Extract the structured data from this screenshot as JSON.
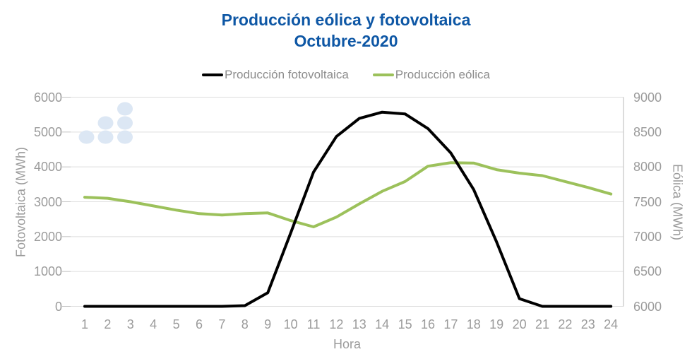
{
  "title": {
    "line1": "Producción eólica y fotovoltaica",
    "line2": "Octubre-2020"
  },
  "legend": {
    "items": [
      {
        "id": "fotovoltaica",
        "label": "Producción fotovoltaica",
        "color": "#000000"
      },
      {
        "id": "eolica",
        "label": "Producción eólica",
        "color": "#9cc15b"
      }
    ]
  },
  "axes": {
    "left_title": "Fotovoltaica (MWh)",
    "right_title": "Eólica (MWh)",
    "x_title": "Hora",
    "left_ticks": [
      0,
      1000,
      2000,
      3000,
      4000,
      5000,
      6000
    ],
    "right_ticks": [
      6000,
      6500,
      7000,
      7500,
      8000,
      8500,
      9000
    ]
  },
  "logo": {
    "icon": "dots-triangle-logo",
    "color": "#dce7f4"
  },
  "colors": {
    "title": "#0e57a5",
    "axis_text": "#9b9b9b",
    "legend_text": "#8c8c8c",
    "gridline": "#dedede",
    "axis_line": "#c9c9c9",
    "tick": "#c2c2c2",
    "background": "#ffffff"
  },
  "chart_data": {
    "type": "line",
    "title": "Producción eólica y fotovoltaica Octubre-2020",
    "xlabel": "Hora",
    "x": [
      1,
      2,
      3,
      4,
      5,
      6,
      7,
      8,
      9,
      10,
      11,
      12,
      13,
      14,
      15,
      16,
      17,
      18,
      19,
      20,
      21,
      22,
      23,
      24
    ],
    "series": [
      {
        "name": "Producción fotovoltaica",
        "line_id": "fotovoltaica-line",
        "axis": "left",
        "ylabel": "Fotovoltaica (MWh)",
        "color": "#000000",
        "values": [
          0,
          0,
          0,
          0,
          0,
          0,
          0,
          20,
          390,
          2100,
          3850,
          4870,
          5390,
          5570,
          5520,
          5100,
          4400,
          3350,
          1850,
          220,
          0,
          0,
          0,
          0
        ]
      },
      {
        "name": "Producción eólica",
        "line_id": "eolica-line",
        "axis": "right",
        "ylabel": "Eólica (MWh)",
        "color": "#9cc15b",
        "values": [
          7565,
          7550,
          7500,
          7440,
          7380,
          7330,
          7310,
          7330,
          7340,
          7230,
          7140,
          7280,
          7470,
          7650,
          7790,
          8010,
          8060,
          8055,
          7960,
          7910,
          7875,
          7790,
          7705,
          7610
        ]
      }
    ],
    "left_ylim": [
      0,
      6000
    ],
    "right_ylim": [
      6000,
      9000
    ],
    "grid": true,
    "legend_position": "top"
  }
}
